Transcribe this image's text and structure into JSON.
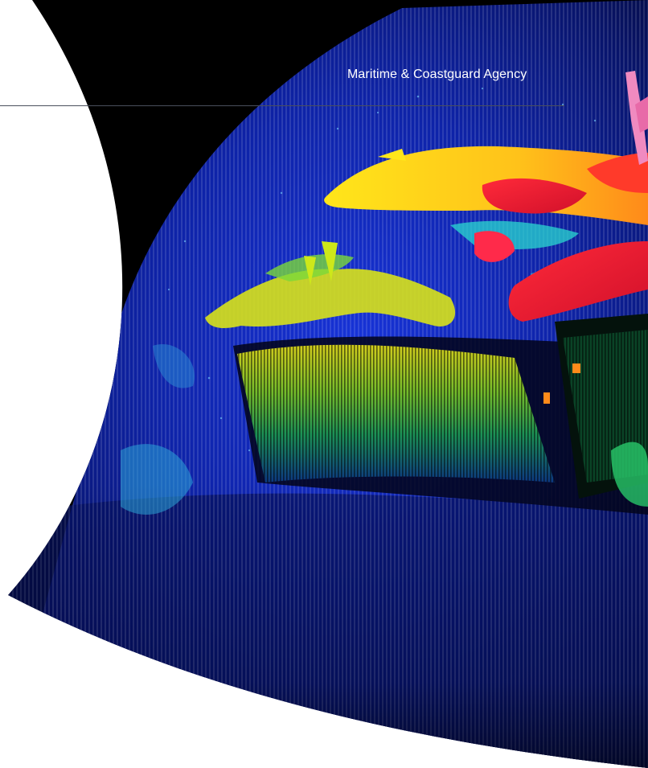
{
  "header": {
    "agency_name": "Maritime & Coastguard Agency"
  },
  "hero_image": {
    "subject": "sonar-point-cloud-shipwreck",
    "colors": {
      "background": "#000000",
      "seabed": "#0b1f8a",
      "hull_low": "#1e7a44",
      "hull_high": "#f2e21a",
      "superstructure": "#ffd21a",
      "hot": "#f21c2a"
    }
  }
}
